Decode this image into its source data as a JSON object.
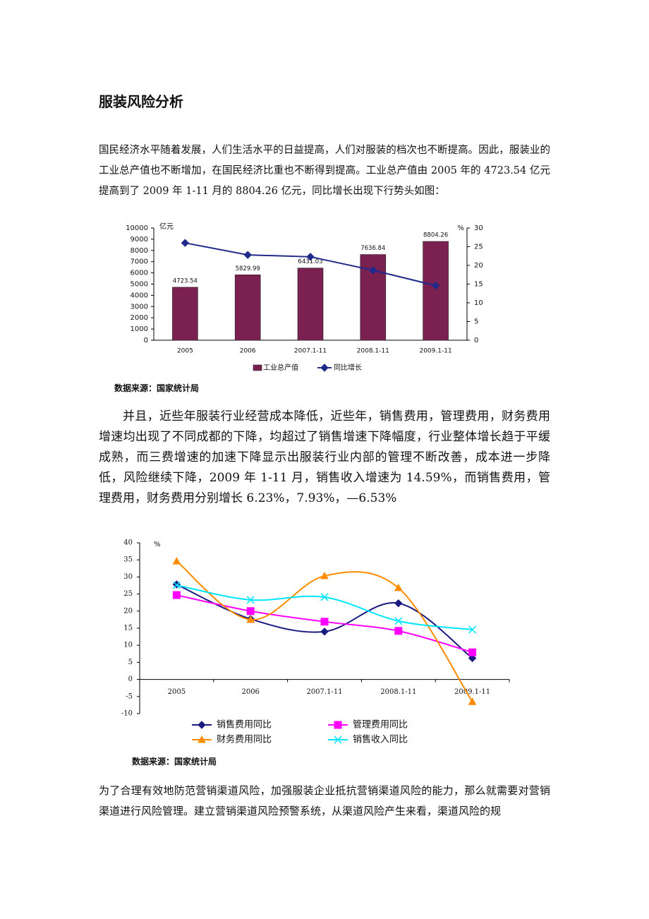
{
  "title": "服装风险分析",
  "paragraphs": [
    "国民经济水平随着发展，人们生活水平的日益提高，人们对服装的档次也不断提高。因此，服装业的工业总产值也不断增加，在国民经济比重也不断得到提高。工业总产值由 2005 年的 4723.54 亿元提高到了 2009 年 1-11 月的 8804.26 亿元，同比增长出现下行势头如图：",
    "并且，近些年服装行业经营成本降低，近些年，销售费用，管理费用，财务费用增速均出现了不同成都的下降，均超过了销售增速下降幅度，行业整体增长趋于平缓成熟，而三费增速的加速下降显示出服装行业内部的管理不断改善，成本进一步降低，风险继续下降，2009 年 1-11 月，销售收入增速为 14.59%，而销售费用，管理费用，财务费用分别增长 6.23%，7.93%，—6.53%",
    "为了合理有效地防范营销渠道风险，加强服装企业抵抗营销渠道风险的能力，那么就需要对营销渠道进行风险管理。建立营销渠道风险预警系统，从渠道风险产生来看，渠道风险的规"
  ],
  "sources": [
    "数据来源：国家统计局",
    "数据来源：国家统计局"
  ],
  "chart_data": [
    {
      "type": "bar",
      "categories": [
        "2005",
        "2006",
        "2007.1-11",
        "2008.1-11",
        "2009.1-11"
      ],
      "ylabel": "亿元",
      "y2label": "%",
      "series": [
        {
          "name": "工业总产值",
          "color": "#7b2152",
          "values": [
            4723.54,
            5829.99,
            6431.03,
            7636.84,
            8804.26
          ],
          "show_values": true
        },
        {
          "name": "同比增长",
          "type": "line",
          "axis": "y2",
          "color": "#1f2a8a",
          "marker": "diamond",
          "values": [
            26,
            22.8,
            22.3,
            18.7,
            14.6
          ]
        }
      ],
      "ylim": [
        0,
        10000
      ],
      "yticks": [
        0,
        1000,
        2000,
        3000,
        4000,
        5000,
        6000,
        7000,
        8000,
        9000,
        10000
      ],
      "y2lim": [
        0,
        30
      ],
      "y2ticks": [
        0,
        5,
        10,
        15,
        20,
        25,
        30
      ],
      "legend": "bottom"
    },
    {
      "type": "line",
      "smooth": true,
      "ylabel": "%",
      "categories": [
        "2005",
        "2006",
        "2007.1-11",
        "2008.1-11",
        "2009.1-11"
      ],
      "series": [
        {
          "name": "销售费用同比",
          "color": "#1a1a80",
          "marker": "diamond",
          "values": [
            27.8,
            17.7,
            14,
            22.3,
            6.23
          ]
        },
        {
          "name": "管理费用同比",
          "color": "#ff00ff",
          "marker": "square",
          "values": [
            24.7,
            20,
            16.9,
            14.2,
            7.93
          ]
        },
        {
          "name": "财务费用同比",
          "color": "#ff8c00",
          "marker": "triangle",
          "values": [
            34.6,
            17.5,
            30.3,
            26.8,
            -6.53
          ]
        },
        {
          "name": "销售收入同比",
          "color": "#00e5ff",
          "marker": "cross",
          "values": [
            27.6,
            23.3,
            24.1,
            17.1,
            14.59
          ]
        }
      ],
      "ylim": [
        -10,
        40
      ],
      "yticks": [
        -10,
        -5,
        0,
        5,
        10,
        15,
        20,
        25,
        30,
        35,
        40
      ],
      "legend": "bottom"
    }
  ]
}
